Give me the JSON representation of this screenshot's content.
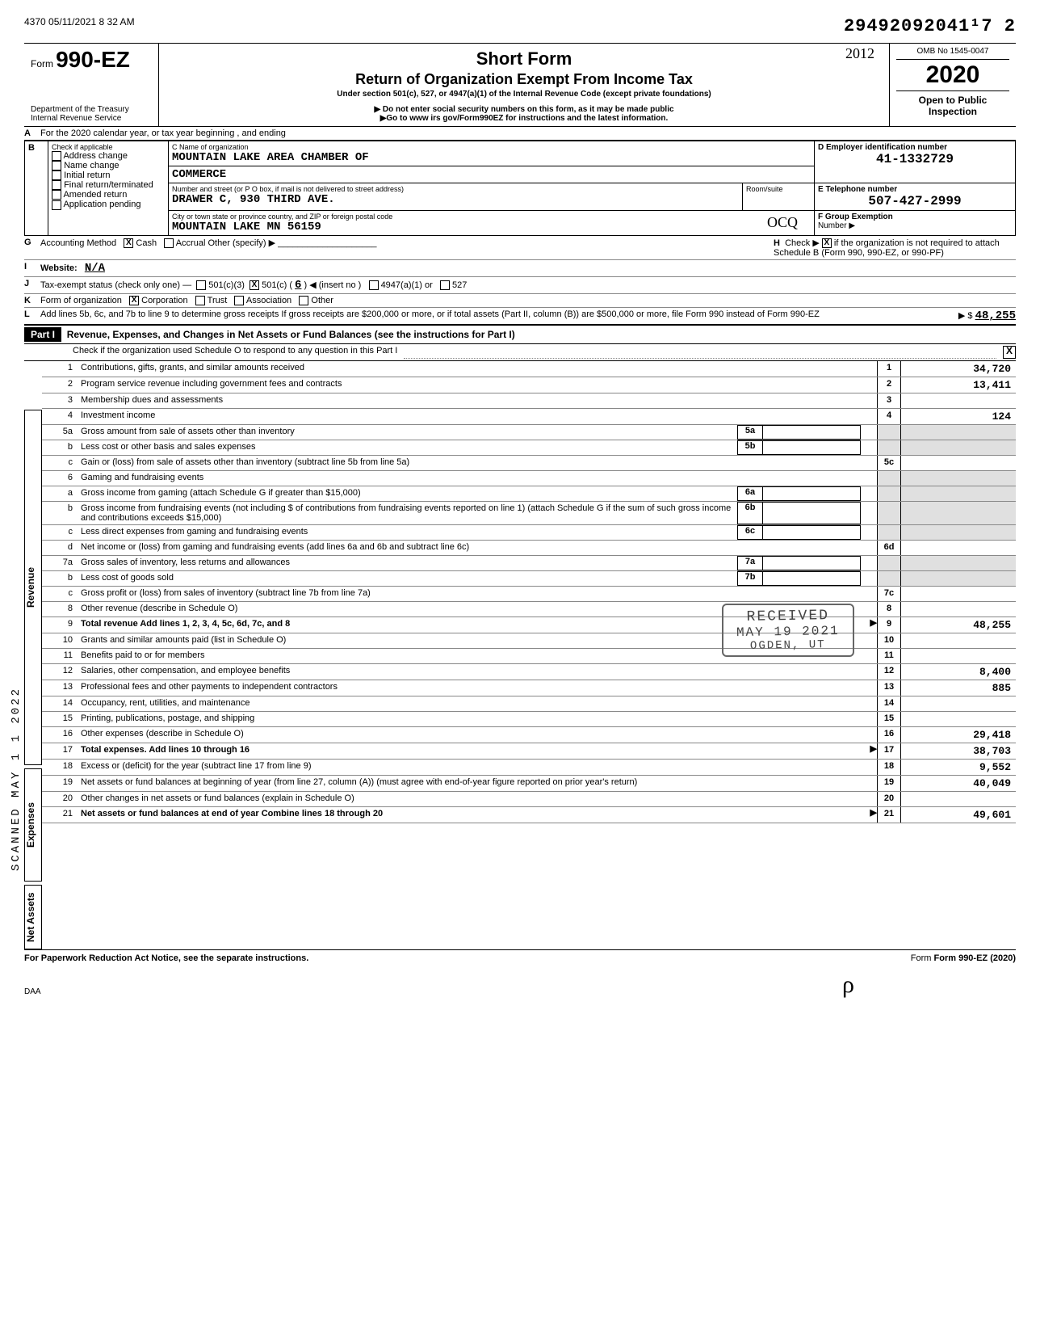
{
  "meta": {
    "print_stamp": "4370 05/11/2021 8 32 AM",
    "tracking": "29492092041¹7  2",
    "omb": "OMB No 1545-0047",
    "tax_year": "2020",
    "open": "Open to Public Inspection",
    "dept": "Department of the Treasury",
    "irs": "Internal Revenue Service",
    "form_prefix": "Form",
    "form_no": "990-EZ",
    "short_form": "Short Form",
    "hand_year": "2012",
    "title": "Return of Organization Exempt From Income Tax",
    "sub1": "Under section 501(c), 527, or 4947(a)(1) of the Internal Revenue Code (except private foundations)",
    "sub2": "▶ Do not enter social security numbers on this form, as it may be made public",
    "sub3": "▶Go to www irs gov/Form990EZ for instructions and the latest information."
  },
  "headerA": "For the 2020 calendar year, or tax year beginning                       , and ending",
  "boxB": {
    "check_label": "Check if applicable",
    "rows": [
      "Address change",
      "Name change",
      "Initial return",
      "Final return/terminated",
      "Amended return",
      "Application pending"
    ],
    "C_label": "C  Name of organization",
    "org_name_1": "MOUNTAIN LAKE AREA CHAMBER OF",
    "org_name_2": "COMMERCE",
    "street_label": "Number and street (or P O  box, if mail is not delivered to street address)",
    "room_label": "Room/suite",
    "street": "DRAWER C, 930 THIRD AVE.",
    "city_label": "City or town  state or province  country, and ZIP or foreign postal code",
    "city": "MOUNTAIN LAKE        MN 56159",
    "D_label": "D  Employer identification number",
    "ein": "41-1332729",
    "E_label": "E  Telephone number",
    "phone": "507-427-2999",
    "F_label": "F  Group Exemption",
    "F_sub": "Number  ▶",
    "initials_hand": "OCQ"
  },
  "lines_GL": {
    "G": "Accounting Method",
    "G_cash": "Cash",
    "G_accrual": "Accrual   Other (specify) ▶",
    "H": "Check ▶",
    "H_text": " if the organization is not required to attach Schedule B (Form 990, 990-EZ, or 990-PF)",
    "I": "Website:",
    "I_val": "N/A",
    "J": "Tax-exempt status (check only one) —",
    "J_501c3": "501(c)(3)",
    "J_501c": "501(c) (",
    "J_insert_no": "6",
    "J_insert_lbl": " ) ◀ (insert no )",
    "J_4947": "4947(a)(1) or",
    "J_527": "527",
    "K": "Form of organization",
    "K_corp": "Corporation",
    "K_trust": "Trust",
    "K_assoc": "Association",
    "K_other": "Other",
    "L": "Add lines 5b, 6c, and 7b to line 9 to determine gross receipts  If gross receipts are $200,000 or more, or if total assets (Part II, column (B)) are $500,000 or more, file Form 990 instead of Form 990-EZ",
    "L_amt": "48,255"
  },
  "partI": {
    "label": "Part I",
    "title": "Revenue, Expenses, and Changes in Net Assets or Fund Balances (see the instructions for Part I)",
    "check_text": "Check if the organization used Schedule O to respond to any question in this Part I",
    "check_mark": "X"
  },
  "sideLabels": {
    "revenue": "Revenue",
    "expenses": "Expenses",
    "netassets": "Net Assets",
    "scanned": "SCANNED MAY 1 1 2022"
  },
  "lines": [
    {
      "n": "1",
      "d": "Contributions, gifts, grants, and similar amounts received",
      "c": "1",
      "v": "34,720"
    },
    {
      "n": "2",
      "d": "Program service revenue including government fees and contracts",
      "c": "2",
      "v": "13,411"
    },
    {
      "n": "3",
      "d": "Membership dues and assessments",
      "c": "3",
      "v": ""
    },
    {
      "n": "4",
      "d": "Investment income",
      "c": "4",
      "v": "124"
    },
    {
      "n": "5a",
      "d": "Gross amount from sale of assets other than inventory",
      "mid": "5a",
      "shade": true
    },
    {
      "n": "b",
      "d": "Less  cost or other basis and sales expenses",
      "mid": "5b",
      "shade": true
    },
    {
      "n": "c",
      "d": "Gain or (loss) from sale of assets other than inventory (subtract line 5b from line 5a)",
      "c": "5c",
      "v": ""
    },
    {
      "n": "6",
      "d": "Gaming and fundraising events",
      "shade": true
    },
    {
      "n": "a",
      "d": "Gross income from gaming (attach Schedule G if greater than $15,000)",
      "mid": "6a",
      "shade": true
    },
    {
      "n": "b",
      "d": "Gross income from fundraising events (not including $                     of contributions from fundraising events reported on line 1) (attach Schedule G if the sum of such gross income and contributions exceeds $15,000)",
      "mid": "6b",
      "shade": true
    },
    {
      "n": "c",
      "d": "Less  direct expenses from gaming and fundraising events",
      "mid": "6c",
      "shade": true
    },
    {
      "n": "d",
      "d": "Net income or (loss) from gaming and fundraising events (add lines 6a and 6b and subtract line 6c)",
      "c": "6d",
      "v": ""
    },
    {
      "n": "7a",
      "d": "Gross sales of inventory, less returns and allowances",
      "mid": "7a",
      "shade": true
    },
    {
      "n": "b",
      "d": "Less  cost of goods sold",
      "mid": "7b",
      "shade": true
    },
    {
      "n": "c",
      "d": "Gross profit or (loss) from sales of inventory (subtract line 7b from line 7a)",
      "c": "7c",
      "v": ""
    },
    {
      "n": "8",
      "d": "Other revenue (describe in Schedule O)",
      "c": "8",
      "v": ""
    },
    {
      "n": "9",
      "d": "Total revenue  Add lines 1, 2, 3, 4, 5c, 6d, 7c, and 8",
      "c": "9",
      "v": "48,255",
      "arrow": true,
      "bold": true
    },
    {
      "n": "10",
      "d": "Grants and similar amounts paid (list in Schedule O)",
      "c": "10",
      "v": ""
    },
    {
      "n": "11",
      "d": "Benefits paid to or for members",
      "c": "11",
      "v": ""
    },
    {
      "n": "12",
      "d": "Salaries, other compensation, and employee benefits",
      "c": "12",
      "v": "8,400"
    },
    {
      "n": "13",
      "d": "Professional fees and other payments to independent contractors",
      "c": "13",
      "v": "885"
    },
    {
      "n": "14",
      "d": "Occupancy, rent, utilities, and maintenance",
      "c": "14",
      "v": ""
    },
    {
      "n": "15",
      "d": "Printing, publications, postage, and shipping",
      "c": "15",
      "v": ""
    },
    {
      "n": "16",
      "d": "Other expenses (describe in Schedule O)",
      "c": "16",
      "v": "29,418"
    },
    {
      "n": "17",
      "d": "Total expenses. Add lines 10 through 16",
      "c": "17",
      "v": "38,703",
      "arrow": true,
      "bold": true
    },
    {
      "n": "18",
      "d": "Excess or (deficit) for the year (subtract line 17 from line 9)",
      "c": "18",
      "v": "9,552"
    },
    {
      "n": "19",
      "d": "Net assets or fund balances at beginning of year (from line 27, column (A)) (must agree with end-of-year figure reported on prior year's return)",
      "c": "19",
      "v": "40,049"
    },
    {
      "n": "20",
      "d": "Other changes in net assets or fund balances (explain in Schedule O)",
      "c": "20",
      "v": ""
    },
    {
      "n": "21",
      "d": "Net assets or fund balances at end of year  Combine lines 18 through 20",
      "c": "21",
      "v": "49,601",
      "arrow": true,
      "bold": true
    }
  ],
  "stamp": {
    "received": "RECEIVED",
    "date": "MAY 19 2021",
    "ogden": "OGDEN, UT"
  },
  "footer": {
    "paperwork": "For Paperwork Reduction Act Notice, see the separate instructions.",
    "formref": "Form 990-EZ (2020)",
    "daa": "DAA"
  }
}
